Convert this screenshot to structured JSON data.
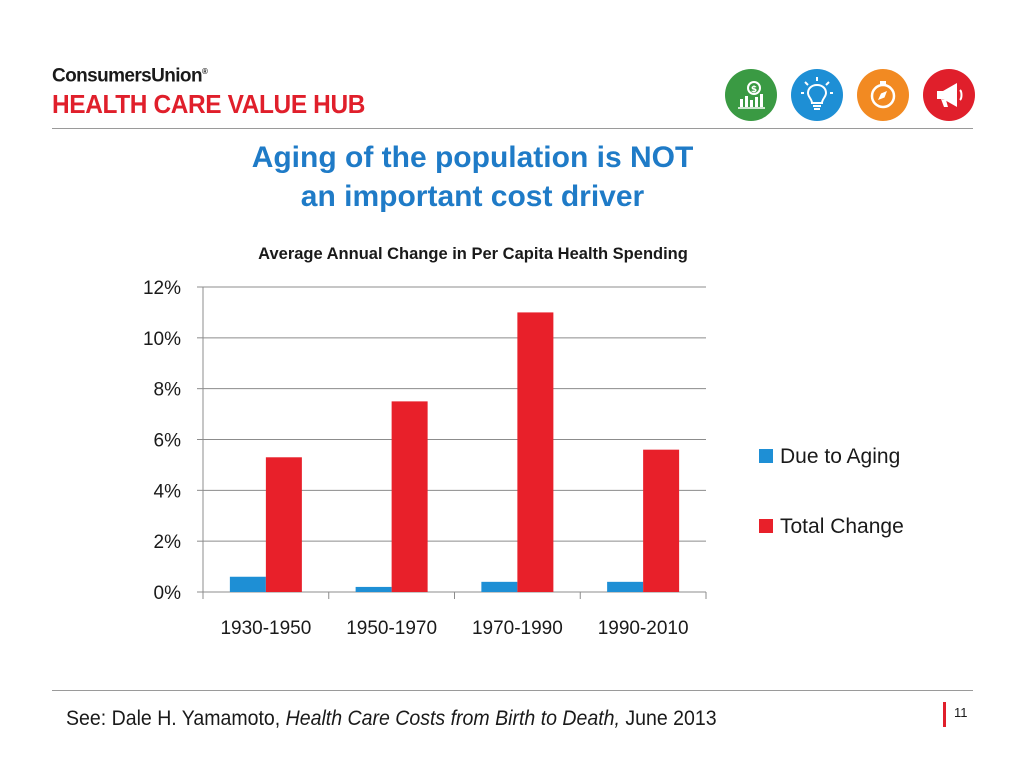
{
  "header": {
    "brand_line1": "ConsumersUnion",
    "brand_registered": "®",
    "brand_line2": "HEALTH CARE VALUE HUB",
    "icons": [
      {
        "name": "money-chart-icon",
        "color": "#3a9a43"
      },
      {
        "name": "lightbulb-icon",
        "color": "#1e8fd5"
      },
      {
        "name": "compass-icon",
        "color": "#f28a22"
      },
      {
        "name": "megaphone-icon",
        "color": "#e01f2b"
      }
    ]
  },
  "slide": {
    "title_line1": "Aging of the population is NOT",
    "title_line2": "an important cost driver"
  },
  "chart_data": {
    "type": "bar",
    "title": "Average Annual Change in Per Capita Health Spending",
    "categories": [
      "1930-1950",
      "1950-1970",
      "1970-1990",
      "1990-2010"
    ],
    "series": [
      {
        "name": "Due to Aging",
        "color": "#1e8fd5",
        "values": [
          0.6,
          0.2,
          0.4,
          0.4
        ]
      },
      {
        "name": "Total Change",
        "color": "#e8202a",
        "values": [
          5.3,
          7.5,
          11.0,
          5.6
        ]
      }
    ],
    "ylim": [
      0,
      12
    ],
    "yticks": [
      0,
      2,
      4,
      6,
      8,
      10,
      12
    ],
    "ytick_labels": [
      "0%",
      "2%",
      "4%",
      "6%",
      "8%",
      "10%",
      "12%"
    ],
    "xlabel": "",
    "ylabel": "",
    "grid": true,
    "legend_position": "right"
  },
  "footer": {
    "citation_prefix": "See: Dale H. Yamamoto, ",
    "citation_title": "Health Care Costs from Birth to Death,",
    "citation_suffix": " June 2013",
    "page_number": "11"
  }
}
